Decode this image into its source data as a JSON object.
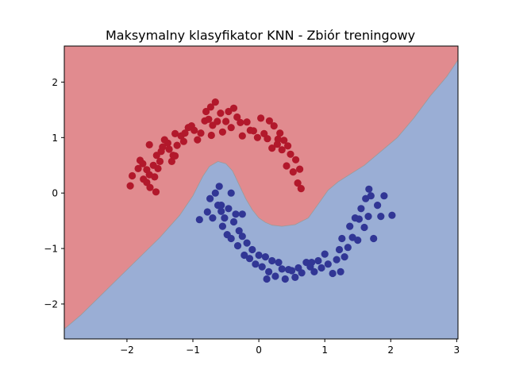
{
  "chart_data": {
    "type": "scatter",
    "title": "Maksymalny klasyfikator KNN - Zbiór treningowy",
    "xlabel": "",
    "ylabel": "",
    "xlim": [
      -2.95,
      3.02
    ],
    "ylim": [
      -2.63,
      2.65
    ],
    "xticks": [
      -2,
      -1,
      0,
      1,
      2,
      3
    ],
    "yticks": [
      -2,
      -1,
      0,
      1,
      2
    ],
    "grid": false,
    "legend": "none",
    "background_regions": [
      {
        "class": "red",
        "color": "#e18b8f"
      },
      {
        "class": "blue",
        "color": "#9aaed5"
      }
    ],
    "decision_boundary": {
      "x": [
        -2.95,
        -2.7,
        -2.4,
        -2.1,
        -1.8,
        -1.5,
        -1.2,
        -1.0,
        -0.85,
        -0.75,
        -0.62,
        -0.5,
        -0.4,
        -0.3,
        -0.2,
        -0.1,
        0.0,
        0.1,
        0.2,
        0.35,
        0.55,
        0.75,
        0.9,
        1.05,
        1.2,
        1.4,
        1.6,
        1.85,
        2.1,
        2.35,
        2.6,
        2.85,
        3.02
      ],
      "y": [
        -2.45,
        -2.2,
        -1.85,
        -1.5,
        -1.15,
        -0.8,
        -0.4,
        -0.05,
        0.3,
        0.48,
        0.57,
        0.53,
        0.4,
        0.15,
        -0.1,
        -0.3,
        -0.45,
        -0.53,
        -0.58,
        -0.6,
        -0.57,
        -0.45,
        -0.2,
        0.05,
        0.2,
        0.35,
        0.5,
        0.75,
        1.0,
        1.35,
        1.75,
        2.1,
        2.4
      ]
    },
    "series": [
      {
        "color": "#b2182b",
        "points": [
          [
            -1.95,
            0.13
          ],
          [
            -1.92,
            0.31
          ],
          [
            -1.83,
            0.44
          ],
          [
            -1.8,
            0.59
          ],
          [
            -1.76,
            0.53
          ],
          [
            -1.75,
            0.25
          ],
          [
            -1.7,
            0.42
          ],
          [
            -1.7,
            0.19
          ],
          [
            -1.66,
            0.33
          ],
          [
            -1.65,
            0.1
          ],
          [
            -1.6,
            0.5
          ],
          [
            -1.58,
            0.29
          ],
          [
            -1.56,
            0.02
          ],
          [
            -1.55,
            0.68
          ],
          [
            -1.53,
            0.44
          ],
          [
            -1.5,
            0.57
          ],
          [
            -1.48,
            0.75
          ],
          [
            -1.46,
            0.83
          ],
          [
            -1.43,
            0.96
          ],
          [
            -1.38,
            0.9
          ],
          [
            -1.36,
            0.79
          ],
          [
            -1.32,
            0.57
          ],
          [
            -1.3,
            0.68
          ],
          [
            -1.27,
            1.07
          ],
          [
            -1.24,
            0.86
          ],
          [
            -1.18,
            1.03
          ],
          [
            -1.12,
            1.08
          ],
          [
            -1.07,
            1.18
          ],
          [
            -1.02,
            1.21
          ],
          [
            -0.98,
            1.13
          ],
          [
            -0.93,
            0.96
          ],
          [
            -0.88,
            1.08
          ],
          [
            -0.82,
            1.3
          ],
          [
            -0.8,
            1.47
          ],
          [
            -0.76,
            1.33
          ],
          [
            -0.73,
            1.55
          ],
          [
            -0.7,
            1.22
          ],
          [
            -0.66,
            1.64
          ],
          [
            -0.63,
            1.29
          ],
          [
            -0.58,
            1.44
          ],
          [
            -0.55,
            1.1
          ],
          [
            -0.5,
            1.29
          ],
          [
            -0.46,
            1.47
          ],
          [
            -0.42,
            1.18
          ],
          [
            -0.38,
            1.53
          ],
          [
            -0.33,
            1.37
          ],
          [
            -0.28,
            1.27
          ],
          [
            -0.25,
            1.03
          ],
          [
            -0.18,
            1.28
          ],
          [
            -0.13,
            1.13
          ],
          [
            -0.08,
            1.12
          ],
          [
            -0.02,
            1.0
          ],
          [
            0.03,
            1.35
          ],
          [
            0.08,
            1.07
          ],
          [
            0.13,
            0.98
          ],
          [
            0.16,
            1.3
          ],
          [
            0.2,
            0.81
          ],
          [
            0.23,
            1.21
          ],
          [
            0.28,
            0.88
          ],
          [
            0.32,
            1.08
          ],
          [
            0.35,
            0.78
          ],
          [
            0.38,
            0.95
          ],
          [
            0.42,
            0.49
          ],
          [
            0.44,
            0.85
          ],
          [
            0.48,
            0.7
          ],
          [
            0.52,
            0.38
          ],
          [
            0.56,
            0.6
          ],
          [
            0.59,
            0.18
          ],
          [
            0.62,
            0.43
          ],
          [
            0.64,
            0.08
          ],
          [
            -1.66,
            0.87
          ],
          [
            -1.27,
            0.67
          ],
          [
            -1.14,
            0.93
          ],
          [
            -0.72,
            1.04
          ],
          [
            0.29,
            0.97
          ]
        ]
      },
      {
        "color": "#313695",
        "points": [
          [
            -0.78,
            -0.34
          ],
          [
            -0.74,
            -0.1
          ],
          [
            -0.7,
            -0.45
          ],
          [
            -0.66,
            0.0
          ],
          [
            -0.62,
            -0.22
          ],
          [
            -0.6,
            0.12
          ],
          [
            -0.57,
            -0.33
          ],
          [
            -0.55,
            -0.6
          ],
          [
            -0.52,
            -0.45
          ],
          [
            -0.48,
            -0.75
          ],
          [
            -0.46,
            -0.28
          ],
          [
            -0.42,
            -0.82
          ],
          [
            -0.38,
            -0.52
          ],
          [
            -0.35,
            -0.38
          ],
          [
            -0.32,
            -0.95
          ],
          [
            -0.3,
            -0.68
          ],
          [
            -0.25,
            -0.78
          ],
          [
            -0.22,
            -1.12
          ],
          [
            -0.18,
            -0.9
          ],
          [
            -0.14,
            -1.18
          ],
          [
            -0.1,
            -1.02
          ],
          [
            -0.05,
            -1.28
          ],
          [
            0.0,
            -1.12
          ],
          [
            0.05,
            -1.33
          ],
          [
            0.1,
            -1.15
          ],
          [
            0.15,
            -1.42
          ],
          [
            0.2,
            -1.22
          ],
          [
            0.25,
            -1.5
          ],
          [
            0.3,
            -1.25
          ],
          [
            0.35,
            -1.37
          ],
          [
            0.4,
            -1.55
          ],
          [
            0.45,
            -1.38
          ],
          [
            0.5,
            -1.4
          ],
          [
            0.55,
            -1.52
          ],
          [
            0.6,
            -1.35
          ],
          [
            0.65,
            -1.44
          ],
          [
            0.72,
            -1.25
          ],
          [
            0.78,
            -1.33
          ],
          [
            0.84,
            -1.42
          ],
          [
            0.9,
            -1.22
          ],
          [
            0.95,
            -1.35
          ],
          [
            1.0,
            -1.1
          ],
          [
            1.05,
            -1.28
          ],
          [
            1.12,
            -1.45
          ],
          [
            1.18,
            -1.2
          ],
          [
            1.22,
            -1.02
          ],
          [
            1.26,
            -0.82
          ],
          [
            1.3,
            -1.15
          ],
          [
            1.35,
            -0.98
          ],
          [
            1.38,
            -0.6
          ],
          [
            1.42,
            -0.8
          ],
          [
            1.46,
            -0.45
          ],
          [
            1.5,
            -0.85
          ],
          [
            1.55,
            -0.28
          ],
          [
            1.6,
            -0.62
          ],
          [
            1.62,
            -0.1
          ],
          [
            1.66,
            -0.42
          ],
          [
            1.7,
            -0.05
          ],
          [
            1.74,
            -0.82
          ],
          [
            1.8,
            -0.22
          ],
          [
            1.85,
            -0.42
          ],
          [
            1.9,
            -0.05
          ],
          [
            2.02,
            -0.4
          ],
          [
            -0.42,
            0.0
          ],
          [
            -0.9,
            -0.48
          ],
          [
            -0.25,
            -0.38
          ],
          [
            0.12,
            -1.55
          ],
          [
            -0.57,
            -0.22
          ],
          [
            0.8,
            -1.25
          ],
          [
            1.24,
            -1.42
          ],
          [
            1.52,
            -0.47
          ],
          [
            1.67,
            0.07
          ]
        ]
      }
    ]
  }
}
